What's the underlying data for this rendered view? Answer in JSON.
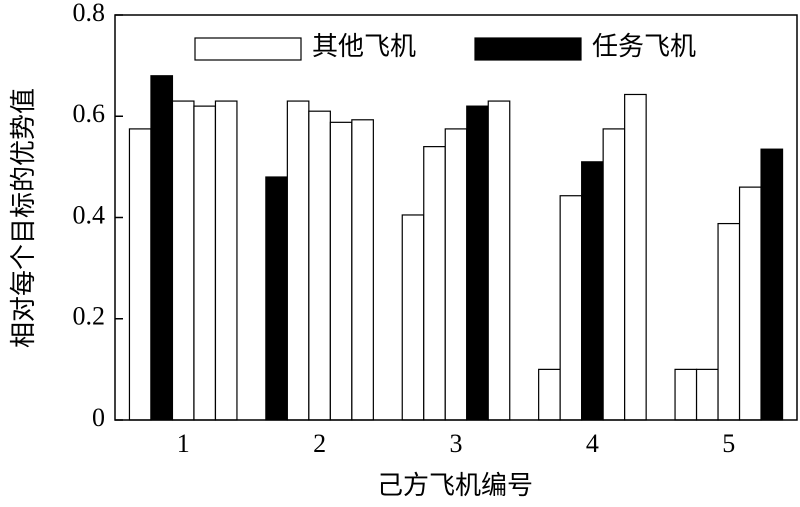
{
  "chart_data": {
    "type": "grouped_bar",
    "x_label": "己方飞机编号",
    "y_label": "相对每个目标的优势值",
    "categories": [
      "1",
      "2",
      "3",
      "4",
      "5"
    ],
    "series": [
      {
        "name": "其他飞机",
        "color": "#ffffff",
        "values": [
          [
            0.575,
            null,
            0.63,
            0.62,
            0.63
          ],
          [
            null,
            0.63,
            0.61,
            0.588,
            0.593
          ],
          [
            0.405,
            0.54,
            0.575,
            null,
            0.63
          ],
          [
            0.1,
            0.443,
            null,
            0.575,
            0.643
          ],
          [
            0.1,
            0.1,
            0.388,
            0.46,
            null
          ]
        ]
      },
      {
        "name": "任务飞机",
        "color": "#000000",
        "values": [
          [
            null,
            0.68,
            null,
            null,
            null
          ],
          [
            0.48,
            null,
            null,
            null,
            null
          ],
          [
            null,
            null,
            null,
            0.62,
            null
          ],
          [
            null,
            null,
            0.51,
            null,
            null
          ],
          [
            null,
            null,
            null,
            null,
            0.535
          ]
        ]
      }
    ],
    "ylim": [
      0,
      0.8
    ],
    "yticks": [
      0,
      0.2,
      0.4,
      0.6,
      0.8
    ]
  }
}
